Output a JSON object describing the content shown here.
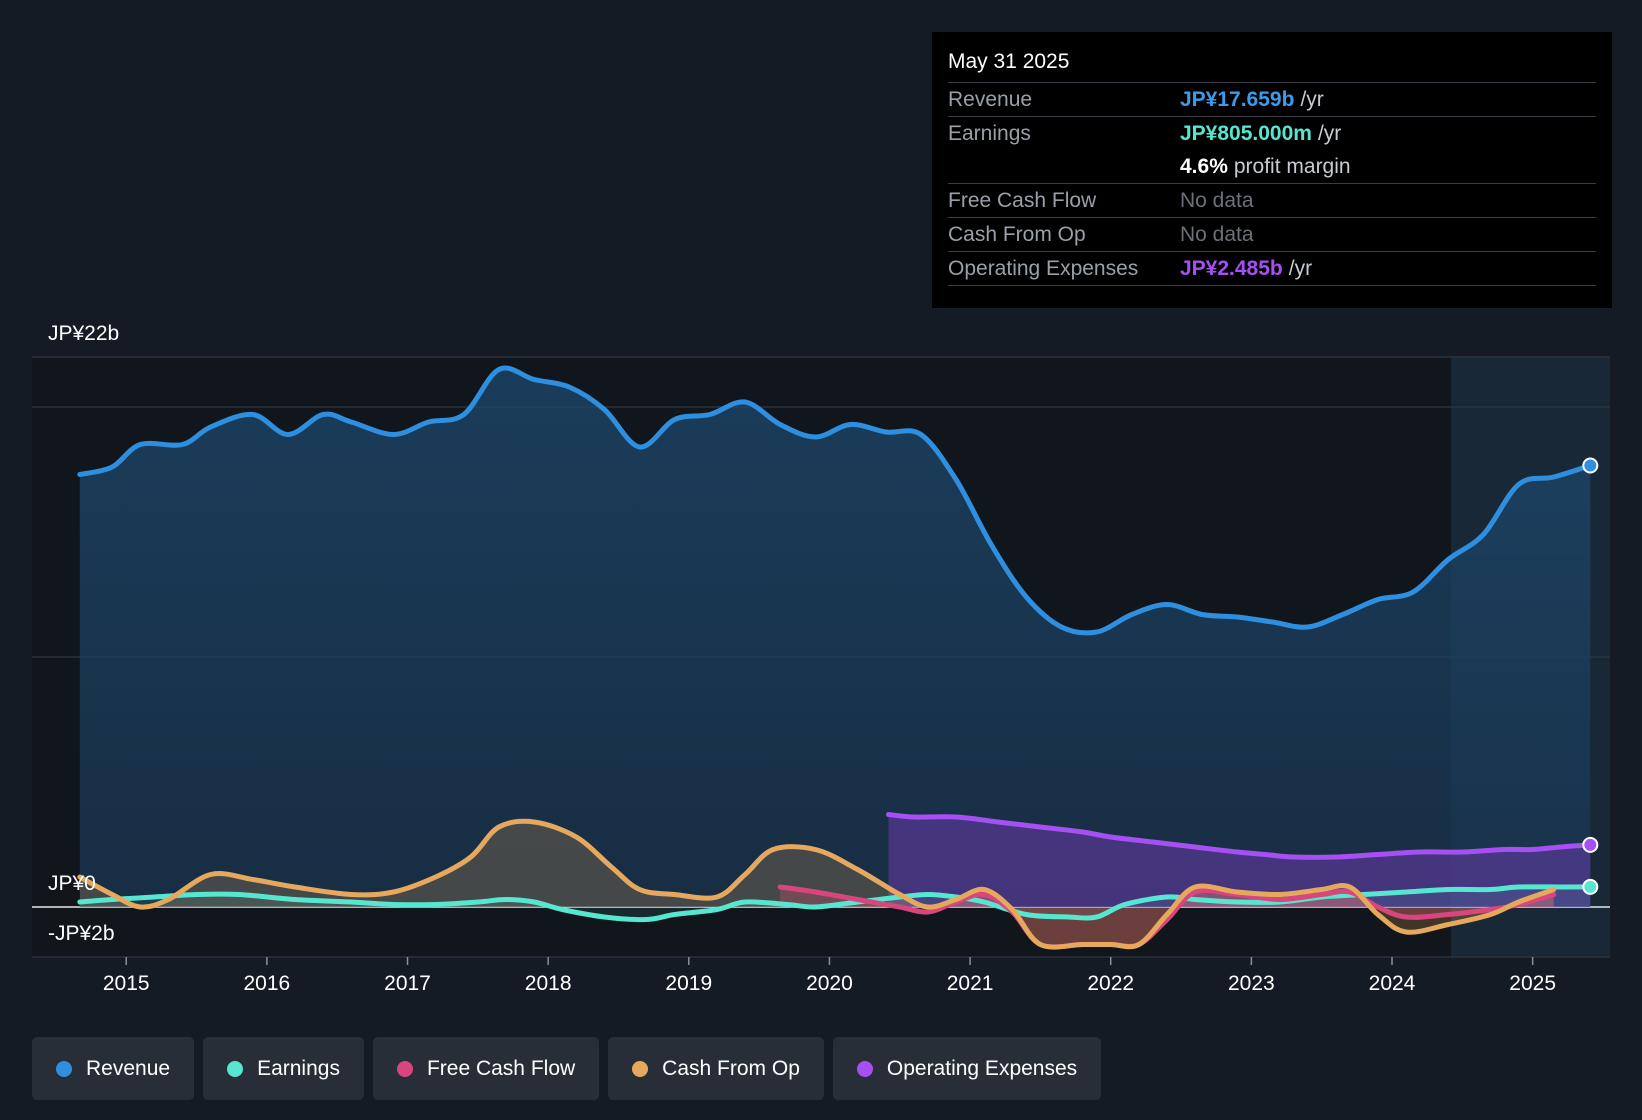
{
  "chart_data": {
    "type": "area",
    "title": "",
    "y_axis": {
      "top_label": "JP¥22b",
      "zero_label": "JP¥0",
      "bottom_label": "-JP¥2b",
      "ylim": [
        -2,
        22
      ]
    },
    "x_ticks": [
      "2015",
      "2016",
      "2017",
      "2018",
      "2019",
      "2020",
      "2021",
      "2022",
      "2023",
      "2024",
      "2025"
    ],
    "xlim": [
      2014.33,
      2025.55
    ],
    "forecast_start": 2024.42,
    "series": [
      {
        "name": "Revenue",
        "color": "#2e8fe0",
        "points": [
          [
            2014.67,
            17.3
          ],
          [
            2014.9,
            17.6
          ],
          [
            2015.1,
            18.5
          ],
          [
            2015.4,
            18.5
          ],
          [
            2015.6,
            19.2
          ],
          [
            2015.9,
            19.7
          ],
          [
            2016.15,
            18.9
          ],
          [
            2016.4,
            19.7
          ],
          [
            2016.6,
            19.4
          ],
          [
            2016.9,
            18.9
          ],
          [
            2017.15,
            19.4
          ],
          [
            2017.4,
            19.7
          ],
          [
            2017.65,
            21.5
          ],
          [
            2017.9,
            21.1
          ],
          [
            2018.15,
            20.8
          ],
          [
            2018.4,
            19.9
          ],
          [
            2018.65,
            18.4
          ],
          [
            2018.9,
            19.5
          ],
          [
            2019.15,
            19.7
          ],
          [
            2019.4,
            20.2
          ],
          [
            2019.65,
            19.3
          ],
          [
            2019.9,
            18.8
          ],
          [
            2020.15,
            19.3
          ],
          [
            2020.4,
            19.0
          ],
          [
            2020.65,
            18.9
          ],
          [
            2020.9,
            17.1
          ],
          [
            2021.15,
            14.5
          ],
          [
            2021.4,
            12.4
          ],
          [
            2021.65,
            11.2
          ],
          [
            2021.9,
            11.0
          ],
          [
            2022.15,
            11.7
          ],
          [
            2022.4,
            12.1
          ],
          [
            2022.65,
            11.7
          ],
          [
            2022.9,
            11.6
          ],
          [
            2023.15,
            11.4
          ],
          [
            2023.4,
            11.2
          ],
          [
            2023.65,
            11.7
          ],
          [
            2023.9,
            12.3
          ],
          [
            2024.15,
            12.6
          ],
          [
            2024.4,
            13.9
          ],
          [
            2024.65,
            14.9
          ],
          [
            2024.9,
            16.9
          ],
          [
            2025.15,
            17.2
          ],
          [
            2025.41,
            17.66
          ]
        ]
      },
      {
        "name": "Earnings",
        "color": "#57e6cf",
        "points": [
          [
            2014.67,
            0.2
          ],
          [
            2014.9,
            0.3
          ],
          [
            2015.2,
            0.4
          ],
          [
            2015.5,
            0.5
          ],
          [
            2015.8,
            0.5
          ],
          [
            2016.2,
            0.3
          ],
          [
            2016.6,
            0.2
          ],
          [
            2016.9,
            0.1
          ],
          [
            2017.2,
            0.1
          ],
          [
            2017.5,
            0.2
          ],
          [
            2017.7,
            0.3
          ],
          [
            2017.9,
            0.2
          ],
          [
            2018.1,
            -0.1
          ],
          [
            2018.4,
            -0.4
          ],
          [
            2018.7,
            -0.5
          ],
          [
            2018.9,
            -0.3
          ],
          [
            2019.2,
            -0.1
          ],
          [
            2019.4,
            0.2
          ],
          [
            2019.7,
            0.1
          ],
          [
            2019.9,
            0.0
          ],
          [
            2020.2,
            0.2
          ],
          [
            2020.5,
            0.4
          ],
          [
            2020.7,
            0.5
          ],
          [
            2020.9,
            0.4
          ],
          [
            2021.1,
            0.2
          ],
          [
            2021.4,
            -0.3
          ],
          [
            2021.7,
            -0.4
          ],
          [
            2021.9,
            -0.4
          ],
          [
            2022.1,
            0.1
          ],
          [
            2022.4,
            0.4
          ],
          [
            2022.6,
            0.3
          ],
          [
            2022.9,
            0.2
          ],
          [
            2023.2,
            0.2
          ],
          [
            2023.5,
            0.4
          ],
          [
            2023.8,
            0.5
          ],
          [
            2024.1,
            0.6
          ],
          [
            2024.4,
            0.7
          ],
          [
            2024.7,
            0.7
          ],
          [
            2024.9,
            0.8
          ],
          [
            2025.2,
            0.8
          ],
          [
            2025.41,
            0.805
          ]
        ]
      },
      {
        "name": "Free Cash Flow",
        "color": "#d9467d",
        "points": [
          [
            2019.65,
            0.8
          ],
          [
            2019.9,
            0.6
          ],
          [
            2020.2,
            0.3
          ],
          [
            2020.5,
            0.0
          ],
          [
            2020.7,
            -0.2
          ],
          [
            2020.9,
            0.2
          ],
          [
            2021.1,
            0.5
          ],
          [
            2021.3,
            -0.2
          ],
          [
            2021.5,
            -1.5
          ],
          [
            2021.8,
            -1.5
          ],
          [
            2022.0,
            -1.5
          ],
          [
            2022.2,
            -1.5
          ],
          [
            2022.4,
            -0.5
          ],
          [
            2022.6,
            0.6
          ],
          [
            2022.9,
            0.5
          ],
          [
            2023.2,
            0.3
          ],
          [
            2023.5,
            0.5
          ],
          [
            2023.7,
            0.6
          ],
          [
            2023.9,
            0.0
          ],
          [
            2024.1,
            -0.4
          ],
          [
            2024.4,
            -0.3
          ],
          [
            2024.7,
            -0.1
          ],
          [
            2024.9,
            0.1
          ],
          [
            2025.15,
            0.5
          ]
        ]
      },
      {
        "name": "Cash From Op",
        "color": "#e6a85c",
        "points": [
          [
            2014.67,
            1.2
          ],
          [
            2014.9,
            0.5
          ],
          [
            2015.1,
            0.0
          ],
          [
            2015.3,
            0.3
          ],
          [
            2015.6,
            1.3
          ],
          [
            2015.9,
            1.1
          ],
          [
            2016.2,
            0.8
          ],
          [
            2016.6,
            0.5
          ],
          [
            2016.9,
            0.6
          ],
          [
            2017.2,
            1.2
          ],
          [
            2017.45,
            2.0
          ],
          [
            2017.65,
            3.2
          ],
          [
            2017.9,
            3.4
          ],
          [
            2018.2,
            2.8
          ],
          [
            2018.45,
            1.6
          ],
          [
            2018.65,
            0.7
          ],
          [
            2018.9,
            0.5
          ],
          [
            2019.2,
            0.4
          ],
          [
            2019.4,
            1.3
          ],
          [
            2019.6,
            2.3
          ],
          [
            2019.9,
            2.3
          ],
          [
            2020.2,
            1.5
          ],
          [
            2020.5,
            0.5
          ],
          [
            2020.7,
            0.0
          ],
          [
            2020.9,
            0.3
          ],
          [
            2021.1,
            0.7
          ],
          [
            2021.3,
            -0.1
          ],
          [
            2021.5,
            -1.5
          ],
          [
            2021.8,
            -1.5
          ],
          [
            2022.0,
            -1.5
          ],
          [
            2022.2,
            -1.5
          ],
          [
            2022.4,
            -0.3
          ],
          [
            2022.6,
            0.8
          ],
          [
            2022.9,
            0.6
          ],
          [
            2023.2,
            0.5
          ],
          [
            2023.5,
            0.7
          ],
          [
            2023.7,
            0.8
          ],
          [
            2023.9,
            -0.3
          ],
          [
            2024.1,
            -1.0
          ],
          [
            2024.4,
            -0.7
          ],
          [
            2024.7,
            -0.3
          ],
          [
            2024.9,
            0.2
          ],
          [
            2025.15,
            0.7
          ]
        ]
      },
      {
        "name": "Operating Expenses",
        "color": "#a64ff2",
        "points": [
          [
            2020.42,
            3.7
          ],
          [
            2020.6,
            3.6
          ],
          [
            2020.9,
            3.6
          ],
          [
            2021.2,
            3.4
          ],
          [
            2021.5,
            3.2
          ],
          [
            2021.8,
            3.0
          ],
          [
            2022.0,
            2.8
          ],
          [
            2022.3,
            2.6
          ],
          [
            2022.6,
            2.4
          ],
          [
            2022.9,
            2.2
          ],
          [
            2023.1,
            2.1
          ],
          [
            2023.3,
            2.0
          ],
          [
            2023.6,
            2.0
          ],
          [
            2023.9,
            2.1
          ],
          [
            2024.2,
            2.2
          ],
          [
            2024.5,
            2.2
          ],
          [
            2024.8,
            2.3
          ],
          [
            2025.0,
            2.3
          ],
          [
            2025.2,
            2.4
          ],
          [
            2025.41,
            2.485
          ]
        ]
      }
    ]
  },
  "tooltip": {
    "date": "May 31 2025",
    "revenue_label": "Revenue",
    "revenue_value": "JP¥17.659b",
    "revenue_suffix": "/yr",
    "earnings_label": "Earnings",
    "earnings_value": "JP¥805.000m",
    "earnings_suffix": "/yr",
    "margin_value": "4.6%",
    "margin_suffix": "profit margin",
    "fcf_label": "Free Cash Flow",
    "fcf_value": "No data",
    "cfo_label": "Cash From Op",
    "cfo_value": "No data",
    "opex_label": "Operating Expenses",
    "opex_value": "JP¥2.485b",
    "opex_suffix": "/yr"
  },
  "legend": [
    {
      "label": "Revenue",
      "color": "#2e8fe0"
    },
    {
      "label": "Earnings",
      "color": "#57e6cf"
    },
    {
      "label": "Free Cash Flow",
      "color": "#d9467d"
    },
    {
      "label": "Cash From Op",
      "color": "#e6a85c"
    },
    {
      "label": "Operating Expenses",
      "color": "#a64ff2"
    }
  ]
}
